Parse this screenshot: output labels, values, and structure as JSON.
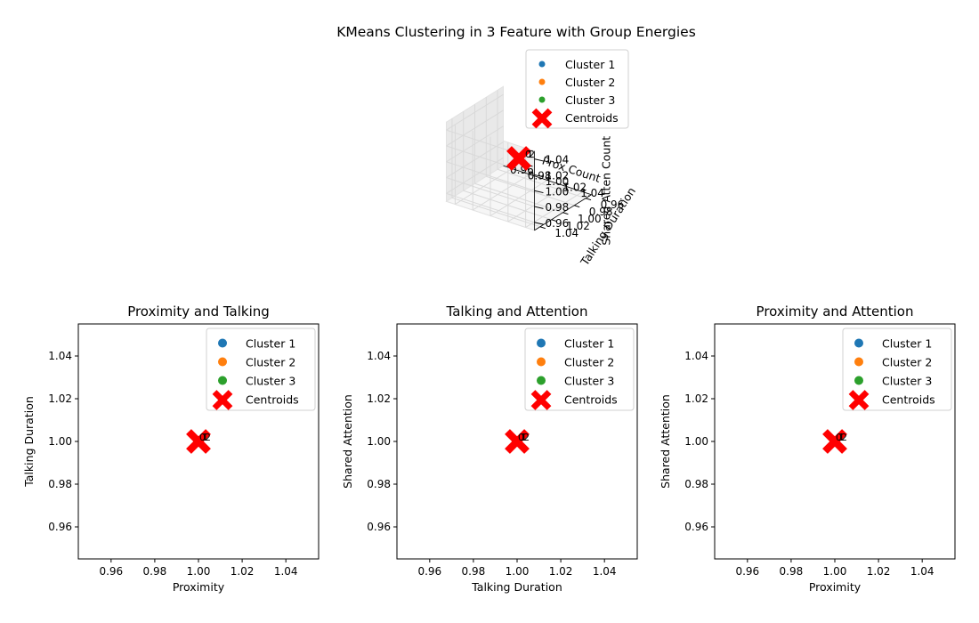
{
  "figure": {
    "title": "KMeans Clustering in 3 Feature with Group Energies"
  },
  "colors": {
    "cluster_1": "#1f77b4",
    "cluster_2": "#ff7f0e",
    "cluster_3": "#2ca02c",
    "centroid": "#ff0000",
    "axis": "#000000",
    "pane": "#f2f2f2",
    "grid": "#d9d9d9"
  },
  "legend": {
    "entries": [
      "Cluster 1",
      "Cluster 2",
      "Cluster 3",
      "Centroids"
    ],
    "placement": "upper right"
  },
  "chart_data": [
    {
      "type": "scatter",
      "projection": "3d",
      "title": "",
      "xlabel": "Prox Count",
      "ylabel": "Talking Duration",
      "zlabel": "Shared Atten Count",
      "xlim": [
        0.95,
        1.05
      ],
      "ylim": [
        0.95,
        1.05
      ],
      "zlim": [
        0.95,
        1.05
      ],
      "xticks": [
        "0.96",
        "0.98",
        "1.00",
        "1.02",
        "1.04"
      ],
      "yticks": [
        "0.96",
        "0.98",
        "1.00",
        "1.02",
        "1.04"
      ],
      "zticks": [
        "0.96",
        "0.98",
        "1.00",
        "1.02",
        "1.04"
      ],
      "series": [
        {
          "name": "Cluster 1",
          "points": [
            [
              1,
              1,
              1
            ]
          ]
        },
        {
          "name": "Cluster 2",
          "points": [
            [
              1,
              1,
              1
            ]
          ]
        },
        {
          "name": "Cluster 3",
          "points": [
            [
              1,
              1,
              1
            ]
          ]
        },
        {
          "name": "Centroids",
          "points": [
            [
              1,
              1,
              1
            ]
          ]
        }
      ],
      "point_labels": [
        "0",
        "1",
        "2"
      ],
      "grid": true,
      "legend": "upper right"
    },
    {
      "type": "scatter",
      "title": "Proximity and Talking",
      "xlabel": "Proximity",
      "ylabel": "Talking Duration",
      "xlim": [
        0.945,
        1.055
      ],
      "ylim": [
        0.945,
        1.055
      ],
      "xticks": [
        "0.96",
        "0.98",
        "1.00",
        "1.02",
        "1.04"
      ],
      "yticks": [
        "0.96",
        "0.98",
        "1.00",
        "1.02",
        "1.04"
      ],
      "series": [
        {
          "name": "Cluster 1",
          "points": [
            [
              1,
              1
            ]
          ]
        },
        {
          "name": "Cluster 2",
          "points": [
            [
              1,
              1
            ]
          ]
        },
        {
          "name": "Cluster 3",
          "points": [
            [
              1,
              1
            ]
          ]
        },
        {
          "name": "Centroids",
          "points": [
            [
              1,
              1
            ]
          ]
        }
      ],
      "point_labels": [
        "0",
        "1",
        "2"
      ],
      "grid": false,
      "legend": "upper right"
    },
    {
      "type": "scatter",
      "title": "Talking and Attention",
      "xlabel": "Talking Duration",
      "ylabel": "Shared Attention",
      "xlim": [
        0.945,
        1.055
      ],
      "ylim": [
        0.945,
        1.055
      ],
      "xticks": [
        "0.96",
        "0.98",
        "1.00",
        "1.02",
        "1.04"
      ],
      "yticks": [
        "0.96",
        "0.98",
        "1.00",
        "1.02",
        "1.04"
      ],
      "series": [
        {
          "name": "Cluster 1",
          "points": [
            [
              1,
              1
            ]
          ]
        },
        {
          "name": "Cluster 2",
          "points": [
            [
              1,
              1
            ]
          ]
        },
        {
          "name": "Cluster 3",
          "points": [
            [
              1,
              1
            ]
          ]
        },
        {
          "name": "Centroids",
          "points": [
            [
              1,
              1
            ]
          ]
        }
      ],
      "point_labels": [
        "0",
        "1",
        "2"
      ],
      "grid": false,
      "legend": "upper right"
    },
    {
      "type": "scatter",
      "title": "Proximity and Attention",
      "xlabel": "Proximity",
      "ylabel": "Shared Attention",
      "xlim": [
        0.945,
        1.055
      ],
      "ylim": [
        0.945,
        1.055
      ],
      "xticks": [
        "0.96",
        "0.98",
        "1.00",
        "1.02",
        "1.04"
      ],
      "yticks": [
        "0.96",
        "0.98",
        "1.00",
        "1.02",
        "1.04"
      ],
      "series": [
        {
          "name": "Cluster 1",
          "points": [
            [
              1,
              1
            ]
          ]
        },
        {
          "name": "Cluster 2",
          "points": [
            [
              1,
              1
            ]
          ]
        },
        {
          "name": "Cluster 3",
          "points": [
            [
              1,
              1
            ]
          ]
        },
        {
          "name": "Centroids",
          "points": [
            [
              1,
              1
            ]
          ]
        }
      ],
      "point_labels": [
        "0",
        "1",
        "2"
      ],
      "grid": false,
      "legend": "upper right"
    }
  ]
}
